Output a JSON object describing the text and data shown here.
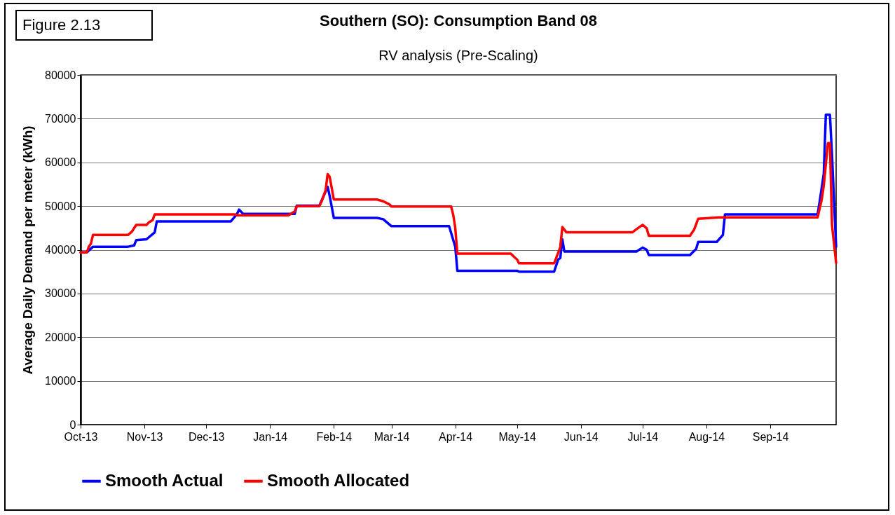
{
  "chart_data": {
    "type": "line",
    "title": "Southern (SO):  Consumption Band 08",
    "subtitle": "RV analysis (Pre-Scaling)",
    "ylabel": "Average Daily Demand per meter (kWh)",
    "annotations": [
      "Figure 2.13"
    ],
    "xlim": [
      "2013-10-01",
      "2014-10-03"
    ],
    "ylim": [
      0,
      80000
    ],
    "xticks": [
      {
        "value": "2013-10-01",
        "label": "Oct-13"
      },
      {
        "value": "2013-11-01",
        "label": "Nov-13"
      },
      {
        "value": "2013-12-01",
        "label": "Dec-13"
      },
      {
        "value": "2014-01-01",
        "label": "Jan-14"
      },
      {
        "value": "2014-02-01",
        "label": "Feb-14"
      },
      {
        "value": "2014-03-01",
        "label": "Mar-14"
      },
      {
        "value": "2014-04-01",
        "label": "Apr-14"
      },
      {
        "value": "2014-05-01",
        "label": "May-14"
      },
      {
        "value": "2014-06-01",
        "label": "Jun-14"
      },
      {
        "value": "2014-07-01",
        "label": "Jul-14"
      },
      {
        "value": "2014-08-01",
        "label": "Aug-14"
      },
      {
        "value": "2014-09-01",
        "label": "Sep-14"
      }
    ],
    "yticks": [
      0,
      10000,
      20000,
      30000,
      40000,
      50000,
      60000,
      70000,
      80000
    ],
    "grid": "y",
    "legend": "bottom",
    "line_style": "solid",
    "marker": "none",
    "series": [
      {
        "name": "Smooth Actual",
        "color": "#0000ff",
        "x": [
          "2013-10-01",
          "2013-10-04",
          "2013-10-07",
          "2013-10-24",
          "2013-10-27",
          "2013-10-28",
          "2013-11-02",
          "2013-11-06",
          "2013-11-07",
          "2013-12-13",
          "2013-12-16",
          "2013-12-17",
          "2013-12-19",
          "2014-01-13",
          "2014-01-14",
          "2014-01-25",
          "2014-01-29",
          "2014-01-30",
          "2014-02-01",
          "2014-02-22",
          "2014-02-25",
          "2014-03-01",
          "2014-03-29",
          "2014-04-01",
          "2014-04-02",
          "2014-05-01",
          "2014-05-02",
          "2014-05-19",
          "2014-05-21",
          "2014-05-22",
          "2014-05-23",
          "2014-05-24",
          "2014-06-28",
          "2014-07-01",
          "2014-07-03",
          "2014-07-04",
          "2014-07-24",
          "2014-07-27",
          "2014-07-28",
          "2014-08-06",
          "2014-08-09",
          "2014-08-10",
          "2014-09-24",
          "2014-09-25",
          "2014-09-27",
          "2014-09-28",
          "2014-09-30",
          "2014-10-01",
          "2014-10-03"
        ],
        "values": [
          39400,
          39400,
          40700,
          40700,
          41000,
          42200,
          42400,
          44000,
          46500,
          46500,
          48200,
          49200,
          48200,
          48200,
          50100,
          50100,
          54400,
          52300,
          47300,
          47300,
          47000,
          45400,
          45400,
          40700,
          35200,
          35200,
          35000,
          35000,
          37800,
          38100,
          42400,
          39600,
          39600,
          40500,
          40000,
          38800,
          38800,
          40200,
          41800,
          41800,
          43400,
          48100,
          48100,
          51000,
          57400,
          70900,
          70900,
          61600,
          40700
        ]
      },
      {
        "name": "Smooth Allocated",
        "color": "#ff0000",
        "x": [
          "2013-10-01",
          "2013-10-04",
          "2013-10-05",
          "2013-10-06",
          "2013-10-07",
          "2013-10-24",
          "2013-10-26",
          "2013-10-28",
          "2013-11-02",
          "2013-11-03",
          "2013-11-05",
          "2013-11-06",
          "2013-12-15",
          "2013-12-16",
          "2014-01-10",
          "2014-01-13",
          "2014-01-14",
          "2014-01-25",
          "2014-01-26",
          "2014-01-28",
          "2014-01-29",
          "2014-01-30",
          "2014-02-01",
          "2014-02-22",
          "2014-02-25",
          "2014-02-28",
          "2014-03-01",
          "2014-03-30",
          "2014-03-31",
          "2014-04-01",
          "2014-04-02",
          "2014-04-28",
          "2014-04-30",
          "2014-05-01",
          "2014-05-02",
          "2014-05-19",
          "2014-05-20",
          "2014-05-22",
          "2014-05-23",
          "2014-05-25",
          "2014-06-26",
          "2014-06-28",
          "2014-07-01",
          "2014-07-03",
          "2014-07-04",
          "2014-07-24",
          "2014-07-26",
          "2014-07-28",
          "2014-08-07",
          "2014-09-24",
          "2014-09-26",
          "2014-09-27",
          "2014-09-29",
          "2014-09-30",
          "2014-10-01",
          "2014-10-03"
        ],
        "values": [
          39400,
          39400,
          40700,
          41400,
          43400,
          43400,
          44200,
          45700,
          45700,
          46200,
          46800,
          48100,
          48100,
          47900,
          47900,
          48800,
          50000,
          50000,
          51000,
          53600,
          57300,
          56700,
          51500,
          51500,
          51100,
          50400,
          49900,
          49900,
          48000,
          45000,
          39100,
          39100,
          38200,
          37800,
          36900,
          36900,
          38100,
          40600,
          45200,
          44000,
          44000,
          44700,
          45700,
          44900,
          43200,
          43200,
          44600,
          47100,
          47400,
          47400,
          51500,
          54700,
          64400,
          64400,
          45600,
          37000
        ]
      }
    ]
  }
}
